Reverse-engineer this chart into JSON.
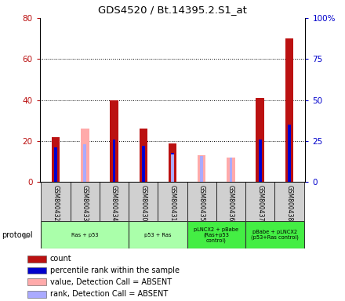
{
  "title": "GDS4520 / Bt.14395.2.S1_at",
  "samples": [
    "GSM800432",
    "GSM800433",
    "GSM800434",
    "GSM800430",
    "GSM800431",
    "GSM800435",
    "GSM800436",
    "GSM800437",
    "GSM800438"
  ],
  "count_values": [
    22,
    0,
    40,
    26,
    19,
    0,
    0,
    41,
    70
  ],
  "rank_values": [
    21,
    0,
    26,
    22,
    18,
    0,
    0,
    26,
    35
  ],
  "absent_value": [
    0,
    26,
    0,
    0,
    0,
    13,
    12,
    0,
    0
  ],
  "absent_rank": [
    0,
    23,
    0,
    0,
    17,
    16,
    15,
    0,
    0
  ],
  "ylim_left": [
    0,
    80
  ],
  "ylim_right": [
    0,
    100
  ],
  "yticks_left": [
    0,
    20,
    40,
    60,
    80
  ],
  "yticks_right": [
    0,
    25,
    50,
    75,
    100
  ],
  "yticklabels_left": [
    "0",
    "20",
    "40",
    "60",
    "80"
  ],
  "yticklabels_right": [
    "0",
    "25",
    "50",
    "75",
    "100%"
  ],
  "color_count": "#bb1111",
  "color_rank": "#0000cc",
  "color_absent_val": "#ffaaaa",
  "color_absent_rank": "#aaaaff",
  "protocol_groups": [
    {
      "label": "Ras + p53",
      "span": [
        0,
        2
      ],
      "color": "#aaffaa"
    },
    {
      "label": "p53 + Ras",
      "span": [
        3,
        4
      ],
      "color": "#aaffaa"
    },
    {
      "label": "pLNCX2 + pBabe\n(Ras+p53\ncontrol)",
      "span": [
        5,
        6
      ],
      "color": "#44ee44"
    },
    {
      "label": "pBabe + pLNCX2\n(p53+Ras control)",
      "span": [
        7,
        8
      ],
      "color": "#44ee44"
    }
  ],
  "legend_items": [
    {
      "label": "count",
      "color": "#bb1111"
    },
    {
      "label": "percentile rank within the sample",
      "color": "#0000cc"
    },
    {
      "label": "value, Detection Call = ABSENT",
      "color": "#ffaaaa"
    },
    {
      "label": "rank, Detection Call = ABSENT",
      "color": "#aaaaff"
    }
  ]
}
